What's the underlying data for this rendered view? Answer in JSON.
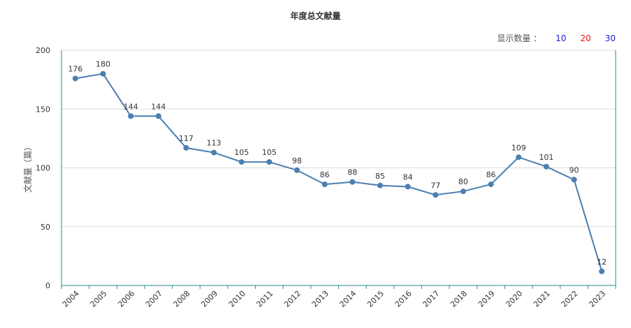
{
  "chart_data": {
    "type": "line",
    "title": "年度总文献量",
    "ylabel": "文献量（篇）",
    "xlabel": "",
    "ylim": [
      0,
      200
    ],
    "yticks": [
      0,
      50,
      100,
      150,
      200
    ],
    "categories": [
      "2004",
      "2005",
      "2006",
      "2007",
      "2008",
      "2009",
      "2010",
      "2011",
      "2012",
      "2013",
      "2014",
      "2015",
      "2016",
      "2017",
      "2018",
      "2019",
      "2020",
      "2021",
      "2022",
      "2023"
    ],
    "series": [
      {
        "values": [
          176,
          180,
          144,
          144,
          117,
          113,
          105,
          105,
          98,
          86,
          88,
          85,
          84,
          77,
          80,
          86,
          109,
          101,
          90,
          12
        ]
      }
    ],
    "grid": true,
    "line_color": "#4a7fb0"
  },
  "controls": {
    "display_count_label": "显示数量 ：",
    "options": [
      "10",
      "20",
      "30"
    ]
  }
}
